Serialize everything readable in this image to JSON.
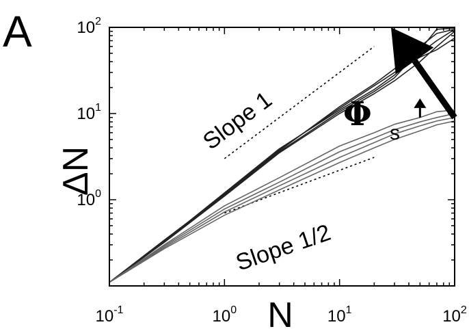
{
  "chart_data": {
    "type": "line",
    "panel_label": "A",
    "xlabel": "N",
    "ylabel": "ΔN",
    "x_scale": "log",
    "y_scale": "log",
    "xlim": [
      0.1,
      100
    ],
    "ylim": [
      0.1,
      100
    ],
    "x_ticks": [
      {
        "value": 0.1,
        "base": "10",
        "exp": "-1"
      },
      {
        "value": 1,
        "base": "10",
        "exp": "0"
      },
      {
        "value": 10,
        "base": "10",
        "exp": "1"
      },
      {
        "value": 100,
        "base": "10",
        "exp": "2"
      }
    ],
    "y_ticks": [
      {
        "value": 1,
        "base": "10",
        "exp": "0"
      },
      {
        "value": 10,
        "base": "10",
        "exp": "1"
      },
      {
        "value": 100,
        "base": "10",
        "exp": "2"
      }
    ],
    "reference_lines": [
      {
        "label": "Slope 1",
        "slope": 1,
        "x": [
          1,
          20
        ],
        "y": [
          3,
          60
        ]
      },
      {
        "label": "Slope 1/2",
        "slope": 0.5,
        "x": [
          1,
          20
        ],
        "y": [
          0.7,
          3.1
        ]
      }
    ],
    "series_groups": [
      {
        "group": "upper",
        "color": "#222222",
        "series": [
          {
            "x": [
              0.1,
              0.3,
              1,
              3,
              10,
              20,
              30,
              50,
              70,
              100
            ],
            "y": [
              0.11,
              0.33,
              1.2,
              3.9,
              11,
              19,
              28,
              50,
              70,
              95
            ]
          },
          {
            "x": [
              0.1,
              0.3,
              1,
              3,
              10,
              20,
              30,
              50,
              70,
              100
            ],
            "y": [
              0.11,
              0.34,
              1.15,
              3.7,
              12,
              22,
              33,
              60,
              85,
              95
            ]
          },
          {
            "x": [
              0.1,
              0.3,
              1,
              3,
              10,
              20,
              30,
              50,
              70,
              100
            ],
            "y": [
              0.11,
              0.32,
              1.1,
              3.5,
              10,
              17,
              24,
              40,
              60,
              90
            ]
          },
          {
            "x": [
              0.1,
              0.3,
              1,
              3,
              10,
              20,
              30,
              50,
              70,
              100
            ],
            "y": [
              0.11,
              0.33,
              1.18,
              3.8,
              11.5,
              21,
              30,
              45,
              55,
              75
            ]
          },
          {
            "x": [
              0.1,
              0.3,
              1,
              3,
              10,
              20,
              30,
              50,
              70,
              100
            ],
            "y": [
              0.11,
              0.33,
              1.12,
              3.6,
              10.5,
              18,
              26,
              55,
              95,
              98
            ]
          }
        ]
      },
      {
        "group": "lower",
        "color": "#666666",
        "series": [
          {
            "x": [
              0.1,
              0.3,
              1,
              3,
              10,
              20,
              30,
              50,
              70,
              100
            ],
            "y": [
              0.11,
              0.3,
              0.85,
              1.8,
              4.2,
              6,
              7.5,
              9,
              10.5,
              11
            ]
          },
          {
            "x": [
              0.1,
              0.3,
              1,
              3,
              10,
              20,
              30,
              50,
              70,
              100
            ],
            "y": [
              0.11,
              0.29,
              0.78,
              1.6,
              3.6,
              5.2,
              6.5,
              8,
              9,
              10
            ]
          },
          {
            "x": [
              0.1,
              0.3,
              1,
              3,
              10,
              20,
              30,
              50,
              70,
              100
            ],
            "y": [
              0.11,
              0.28,
              0.72,
              1.45,
              3.1,
              4.6,
              5.8,
              7.2,
              8.2,
              9
            ]
          },
          {
            "x": [
              0.1,
              0.3,
              1,
              3,
              10,
              20,
              30,
              50,
              70,
              100
            ],
            "y": [
              0.11,
              0.27,
              0.66,
              1.3,
              2.7,
              4,
              5,
              6.3,
              7.4,
              8.2
            ]
          }
        ]
      }
    ],
    "annotations": {
      "slope1": "Slope 1",
      "slope_half": "Slope 1/2",
      "phi": "Φ",
      "phi_sub": "s"
    },
    "arrows": [
      {
        "name": "big-arrow",
        "from": [
          100,
          9
        ],
        "to": [
          28,
          100
        ],
        "direction": "increasing Φs"
      },
      {
        "name": "small-arrow",
        "from": [
          50,
          9
        ],
        "to": [
          50,
          15
        ],
        "direction": "up"
      }
    ]
  }
}
